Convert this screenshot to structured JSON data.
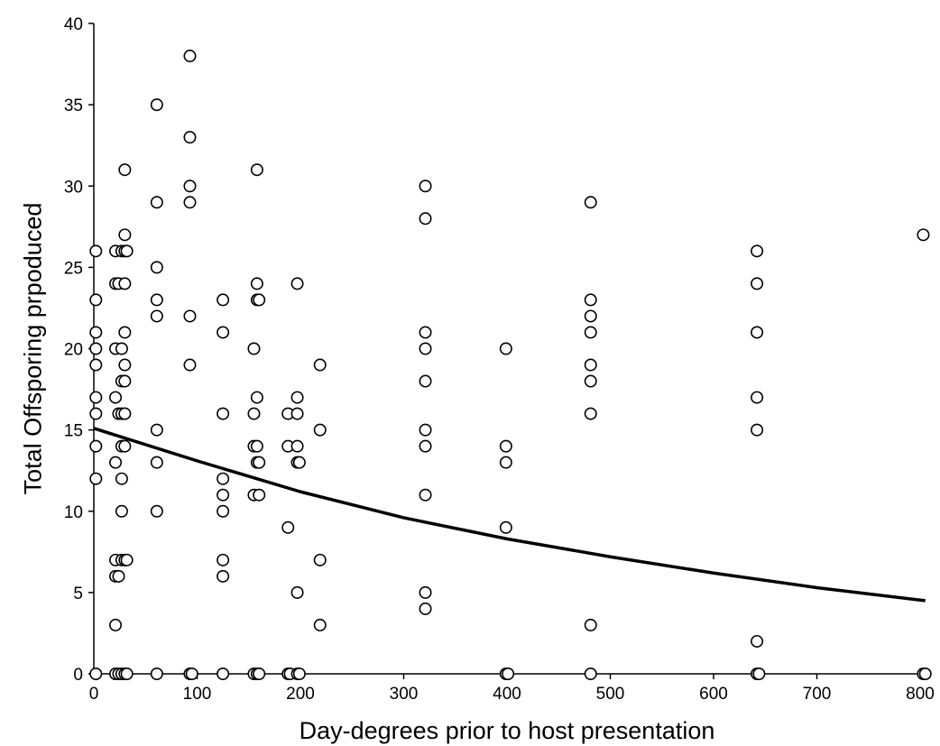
{
  "chart_data": {
    "type": "scatter",
    "xlabel": "Day-degrees prior to host presentation",
    "ylabel": "Total Offsporing prpoduced",
    "xlim": [
      0,
      800
    ],
    "ylim": [
      0,
      40
    ],
    "x_ticks": [
      0,
      100,
      200,
      300,
      400,
      500,
      600,
      700,
      800
    ],
    "y_ticks": [
      0,
      5,
      10,
      15,
      20,
      25,
      30,
      35,
      40
    ],
    "grid": false,
    "legend": "none",
    "colors": {
      "marker_edge": "#000000",
      "marker_fill": "#ffffff",
      "line": "#000000",
      "axis": "#000000"
    },
    "series": [
      {
        "type": "scatter",
        "points": [
          [
            2,
            0
          ],
          [
            2,
            12
          ],
          [
            2,
            14
          ],
          [
            2,
            16
          ],
          [
            2,
            17
          ],
          [
            2,
            19
          ],
          [
            2,
            20
          ],
          [
            2,
            21
          ],
          [
            2,
            23
          ],
          [
            2,
            26
          ],
          [
            21,
            0
          ],
          [
            21,
            3
          ],
          [
            21,
            6
          ],
          [
            21,
            7
          ],
          [
            21,
            13
          ],
          [
            21,
            17
          ],
          [
            21,
            20
          ],
          [
            21,
            24
          ],
          [
            21,
            26
          ],
          [
            24,
            0
          ],
          [
            24,
            6
          ],
          [
            24,
            16
          ],
          [
            24,
            24
          ],
          [
            27,
            0
          ],
          [
            27,
            7
          ],
          [
            27,
            10
          ],
          [
            27,
            12
          ],
          [
            27,
            14
          ],
          [
            27,
            16
          ],
          [
            27,
            18
          ],
          [
            27,
            20
          ],
          [
            27,
            26
          ],
          [
            30,
            0
          ],
          [
            30,
            7
          ],
          [
            30,
            14
          ],
          [
            30,
            16
          ],
          [
            30,
            18
          ],
          [
            30,
            19
          ],
          [
            30,
            21
          ],
          [
            30,
            24
          ],
          [
            30,
            26
          ],
          [
            30,
            27
          ],
          [
            30,
            31
          ],
          [
            32,
            0
          ],
          [
            32,
            7
          ],
          [
            32,
            26
          ],
          [
            61,
            0
          ],
          [
            61,
            10
          ],
          [
            61,
            13
          ],
          [
            61,
            15
          ],
          [
            61,
            22
          ],
          [
            61,
            23
          ],
          [
            61,
            25
          ],
          [
            61,
            29
          ],
          [
            61,
            35
          ],
          [
            93,
            0
          ],
          [
            93,
            19
          ],
          [
            93,
            22
          ],
          [
            93,
            29
          ],
          [
            93,
            30
          ],
          [
            93,
            33
          ],
          [
            93,
            38
          ],
          [
            95,
            0
          ],
          [
            125,
            0
          ],
          [
            125,
            6
          ],
          [
            125,
            7
          ],
          [
            125,
            10
          ],
          [
            125,
            11
          ],
          [
            125,
            12
          ],
          [
            125,
            16
          ],
          [
            125,
            21
          ],
          [
            125,
            23
          ],
          [
            155,
            0
          ],
          [
            155,
            11
          ],
          [
            155,
            14
          ],
          [
            155,
            16
          ],
          [
            155,
            20
          ],
          [
            158,
            0
          ],
          [
            158,
            13
          ],
          [
            158,
            14
          ],
          [
            158,
            17
          ],
          [
            158,
            23
          ],
          [
            158,
            24
          ],
          [
            158,
            31
          ],
          [
            160,
            0
          ],
          [
            160,
            11
          ],
          [
            160,
            13
          ],
          [
            160,
            23
          ],
          [
            188,
            0
          ],
          [
            188,
            9
          ],
          [
            188,
            14
          ],
          [
            188,
            16
          ],
          [
            190,
            0
          ],
          [
            197,
            0
          ],
          [
            197,
            5
          ],
          [
            197,
            13
          ],
          [
            197,
            14
          ],
          [
            197,
            16
          ],
          [
            197,
            17
          ],
          [
            197,
            24
          ],
          [
            199,
            0
          ],
          [
            199,
            13
          ],
          [
            219,
            3
          ],
          [
            219,
            7
          ],
          [
            219,
            15
          ],
          [
            219,
            19
          ],
          [
            321,
            4
          ],
          [
            321,
            5
          ],
          [
            321,
            11
          ],
          [
            321,
            14
          ],
          [
            321,
            15
          ],
          [
            321,
            18
          ],
          [
            321,
            20
          ],
          [
            321,
            21
          ],
          [
            321,
            28
          ],
          [
            321,
            30
          ],
          [
            399,
            0
          ],
          [
            399,
            9
          ],
          [
            399,
            13
          ],
          [
            399,
            14
          ],
          [
            399,
            20
          ],
          [
            401,
            0
          ],
          [
            481,
            0
          ],
          [
            481,
            3
          ],
          [
            481,
            16
          ],
          [
            481,
            18
          ],
          [
            481,
            19
          ],
          [
            481,
            21
          ],
          [
            481,
            22
          ],
          [
            481,
            23
          ],
          [
            481,
            29
          ],
          [
            642,
            0
          ],
          [
            642,
            2
          ],
          [
            642,
            15
          ],
          [
            642,
            17
          ],
          [
            642,
            21
          ],
          [
            642,
            24
          ],
          [
            642,
            26
          ],
          [
            644,
            0
          ],
          [
            803,
            0
          ],
          [
            803,
            27
          ],
          [
            805,
            0
          ]
        ]
      },
      {
        "type": "line",
        "points": [
          [
            0,
            15.1
          ],
          [
            100,
            13.1
          ],
          [
            200,
            11.2
          ],
          [
            300,
            9.6
          ],
          [
            400,
            8.3
          ],
          [
            500,
            7.2
          ],
          [
            600,
            6.2
          ],
          [
            700,
            5.3
          ],
          [
            805,
            4.5
          ]
        ]
      }
    ]
  }
}
